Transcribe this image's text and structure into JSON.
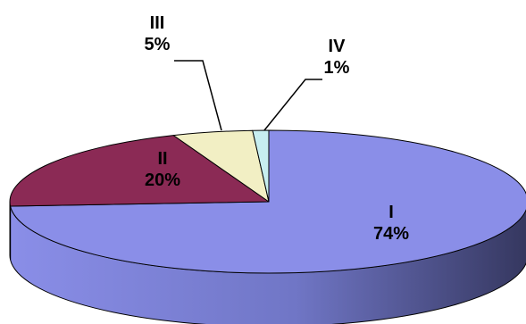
{
  "chart_data": {
    "type": "pie",
    "style": "3d-pie",
    "title": "",
    "legend": "none",
    "categories": [
      "I",
      "II",
      "III",
      "IV"
    ],
    "values": [
      74,
      20,
      5,
      1
    ],
    "value_labels": [
      "74%",
      "20%",
      "5%",
      "1%"
    ],
    "colors": [
      "#8a8ee8",
      "#8b2a55",
      "#f2efc4",
      "#c7eef0"
    ]
  }
}
